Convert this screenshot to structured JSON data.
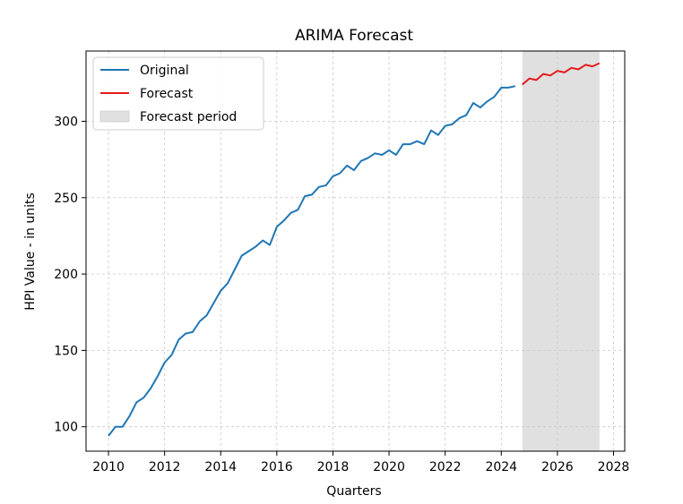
{
  "chart_data": {
    "type": "line",
    "title": "ARIMA Forecast",
    "xlabel": "Quarters",
    "ylabel": "HPI Value - in units",
    "xlim": [
      2009.2,
      2028.4
    ],
    "ylim": [
      84,
      346
    ],
    "xticks": [
      2010,
      2012,
      2014,
      2016,
      2018,
      2020,
      2022,
      2024,
      2026,
      2028
    ],
    "yticks": [
      100,
      150,
      200,
      250,
      300
    ],
    "grid": true,
    "legend_position": "top-left",
    "forecast_period": [
      2024.75,
      2027.5
    ],
    "series": [
      {
        "name": "Original",
        "color": "#1f77b4",
        "x": [
          2010.0,
          2010.25,
          2010.5,
          2010.75,
          2011.0,
          2011.25,
          2011.5,
          2011.75,
          2012.0,
          2012.25,
          2012.5,
          2012.75,
          2013.0,
          2013.25,
          2013.5,
          2013.75,
          2014.0,
          2014.25,
          2014.5,
          2014.75,
          2015.0,
          2015.25,
          2015.5,
          2015.75,
          2016.0,
          2016.25,
          2016.5,
          2016.75,
          2017.0,
          2017.25,
          2017.5,
          2017.75,
          2018.0,
          2018.25,
          2018.5,
          2018.75,
          2019.0,
          2019.25,
          2019.5,
          2019.75,
          2020.0,
          2020.25,
          2020.5,
          2020.75,
          2021.0,
          2021.25,
          2021.5,
          2021.75,
          2022.0,
          2022.25,
          2022.5,
          2022.75,
          2023.0,
          2023.25,
          2023.5,
          2023.75,
          2024.0,
          2024.25,
          2024.5
        ],
        "y": [
          94,
          100,
          100,
          107,
          116,
          119,
          125,
          133,
          142,
          147,
          157,
          161,
          162,
          169,
          173,
          181,
          189,
          194,
          203,
          212,
          215,
          218,
          222,
          219,
          231,
          235,
          240,
          242,
          251,
          252,
          257,
          258,
          264,
          266,
          271,
          268,
          274,
          276,
          279,
          278,
          281,
          278,
          285,
          285,
          287,
          285,
          294,
          291,
          297,
          298,
          302,
          304,
          312,
          309,
          313,
          316,
          322,
          322,
          323
        ]
      },
      {
        "name": "Forecast",
        "color": "#e41a1c",
        "x": [
          2024.75,
          2025.0,
          2025.25,
          2025.5,
          2025.75,
          2026.0,
          2026.25,
          2026.5,
          2026.75,
          2027.0,
          2027.25,
          2027.5
        ],
        "y": [
          324,
          328,
          327,
          331,
          330,
          333,
          332,
          335,
          334,
          337,
          336,
          338
        ]
      }
    ],
    "legend": [
      {
        "label": "Original",
        "kind": "line",
        "color": "#1f77b4"
      },
      {
        "label": "Forecast",
        "kind": "line",
        "color": "#e41a1c"
      },
      {
        "label": "Forecast period",
        "kind": "patch",
        "color": "#e0e0e0"
      }
    ]
  }
}
